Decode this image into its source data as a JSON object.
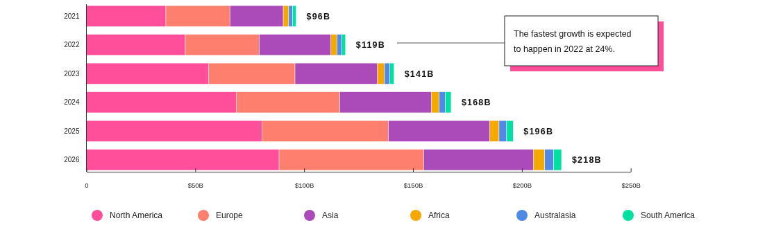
{
  "chart_data": {
    "type": "bar",
    "orientation": "horizontal",
    "stacked": true,
    "categories": [
      "2021",
      "2022",
      "2023",
      "2024",
      "2025",
      "2026"
    ],
    "series": [
      {
        "name": "North America",
        "color": "#ff4f9a",
        "values": [
          36.5,
          45.4,
          56.2,
          68.8,
          80.6,
          88.5
        ]
      },
      {
        "name": "Europe",
        "color": "#ff7f6e",
        "values": [
          29.4,
          34.0,
          39.6,
          47.6,
          58.1,
          66.4
        ]
      },
      {
        "name": "Asia",
        "color": "#ab4bb9",
        "values": [
          24.5,
          32.9,
          37.9,
          42.0,
          46.5,
          50.5
        ]
      },
      {
        "name": "Africa",
        "color": "#f5a800",
        "values": [
          2.5,
          2.8,
          3.2,
          3.6,
          4.3,
          5.1
        ]
      },
      {
        "name": "Australasia",
        "color": "#4f8ae6",
        "values": [
          1.8,
          2.1,
          2.5,
          2.9,
          3.5,
          4.1
        ]
      },
      {
        "name": "South America",
        "color": "#00e0a0",
        "values": [
          1.6,
          1.8,
          1.9,
          2.6,
          3.0,
          3.6
        ]
      }
    ],
    "totals": [
      "$96B",
      "$119B",
      "$141B",
      "$168B",
      "$196B",
      "$218B"
    ],
    "xlim": [
      0,
      250
    ],
    "xticks": [
      0,
      {
        "value": 50,
        "label": "$50B"
      },
      {
        "value": 100,
        "label": "$100B"
      },
      {
        "value": 150,
        "label": "$150B"
      },
      {
        "value": 200,
        "label": "$200B"
      },
      {
        "value": 250,
        "label": "$250B"
      }
    ],
    "annotations": [
      "The fastest growth is expected to happen in 2022 at 24%."
    ],
    "legend": "bottom",
    "grid": false
  }
}
